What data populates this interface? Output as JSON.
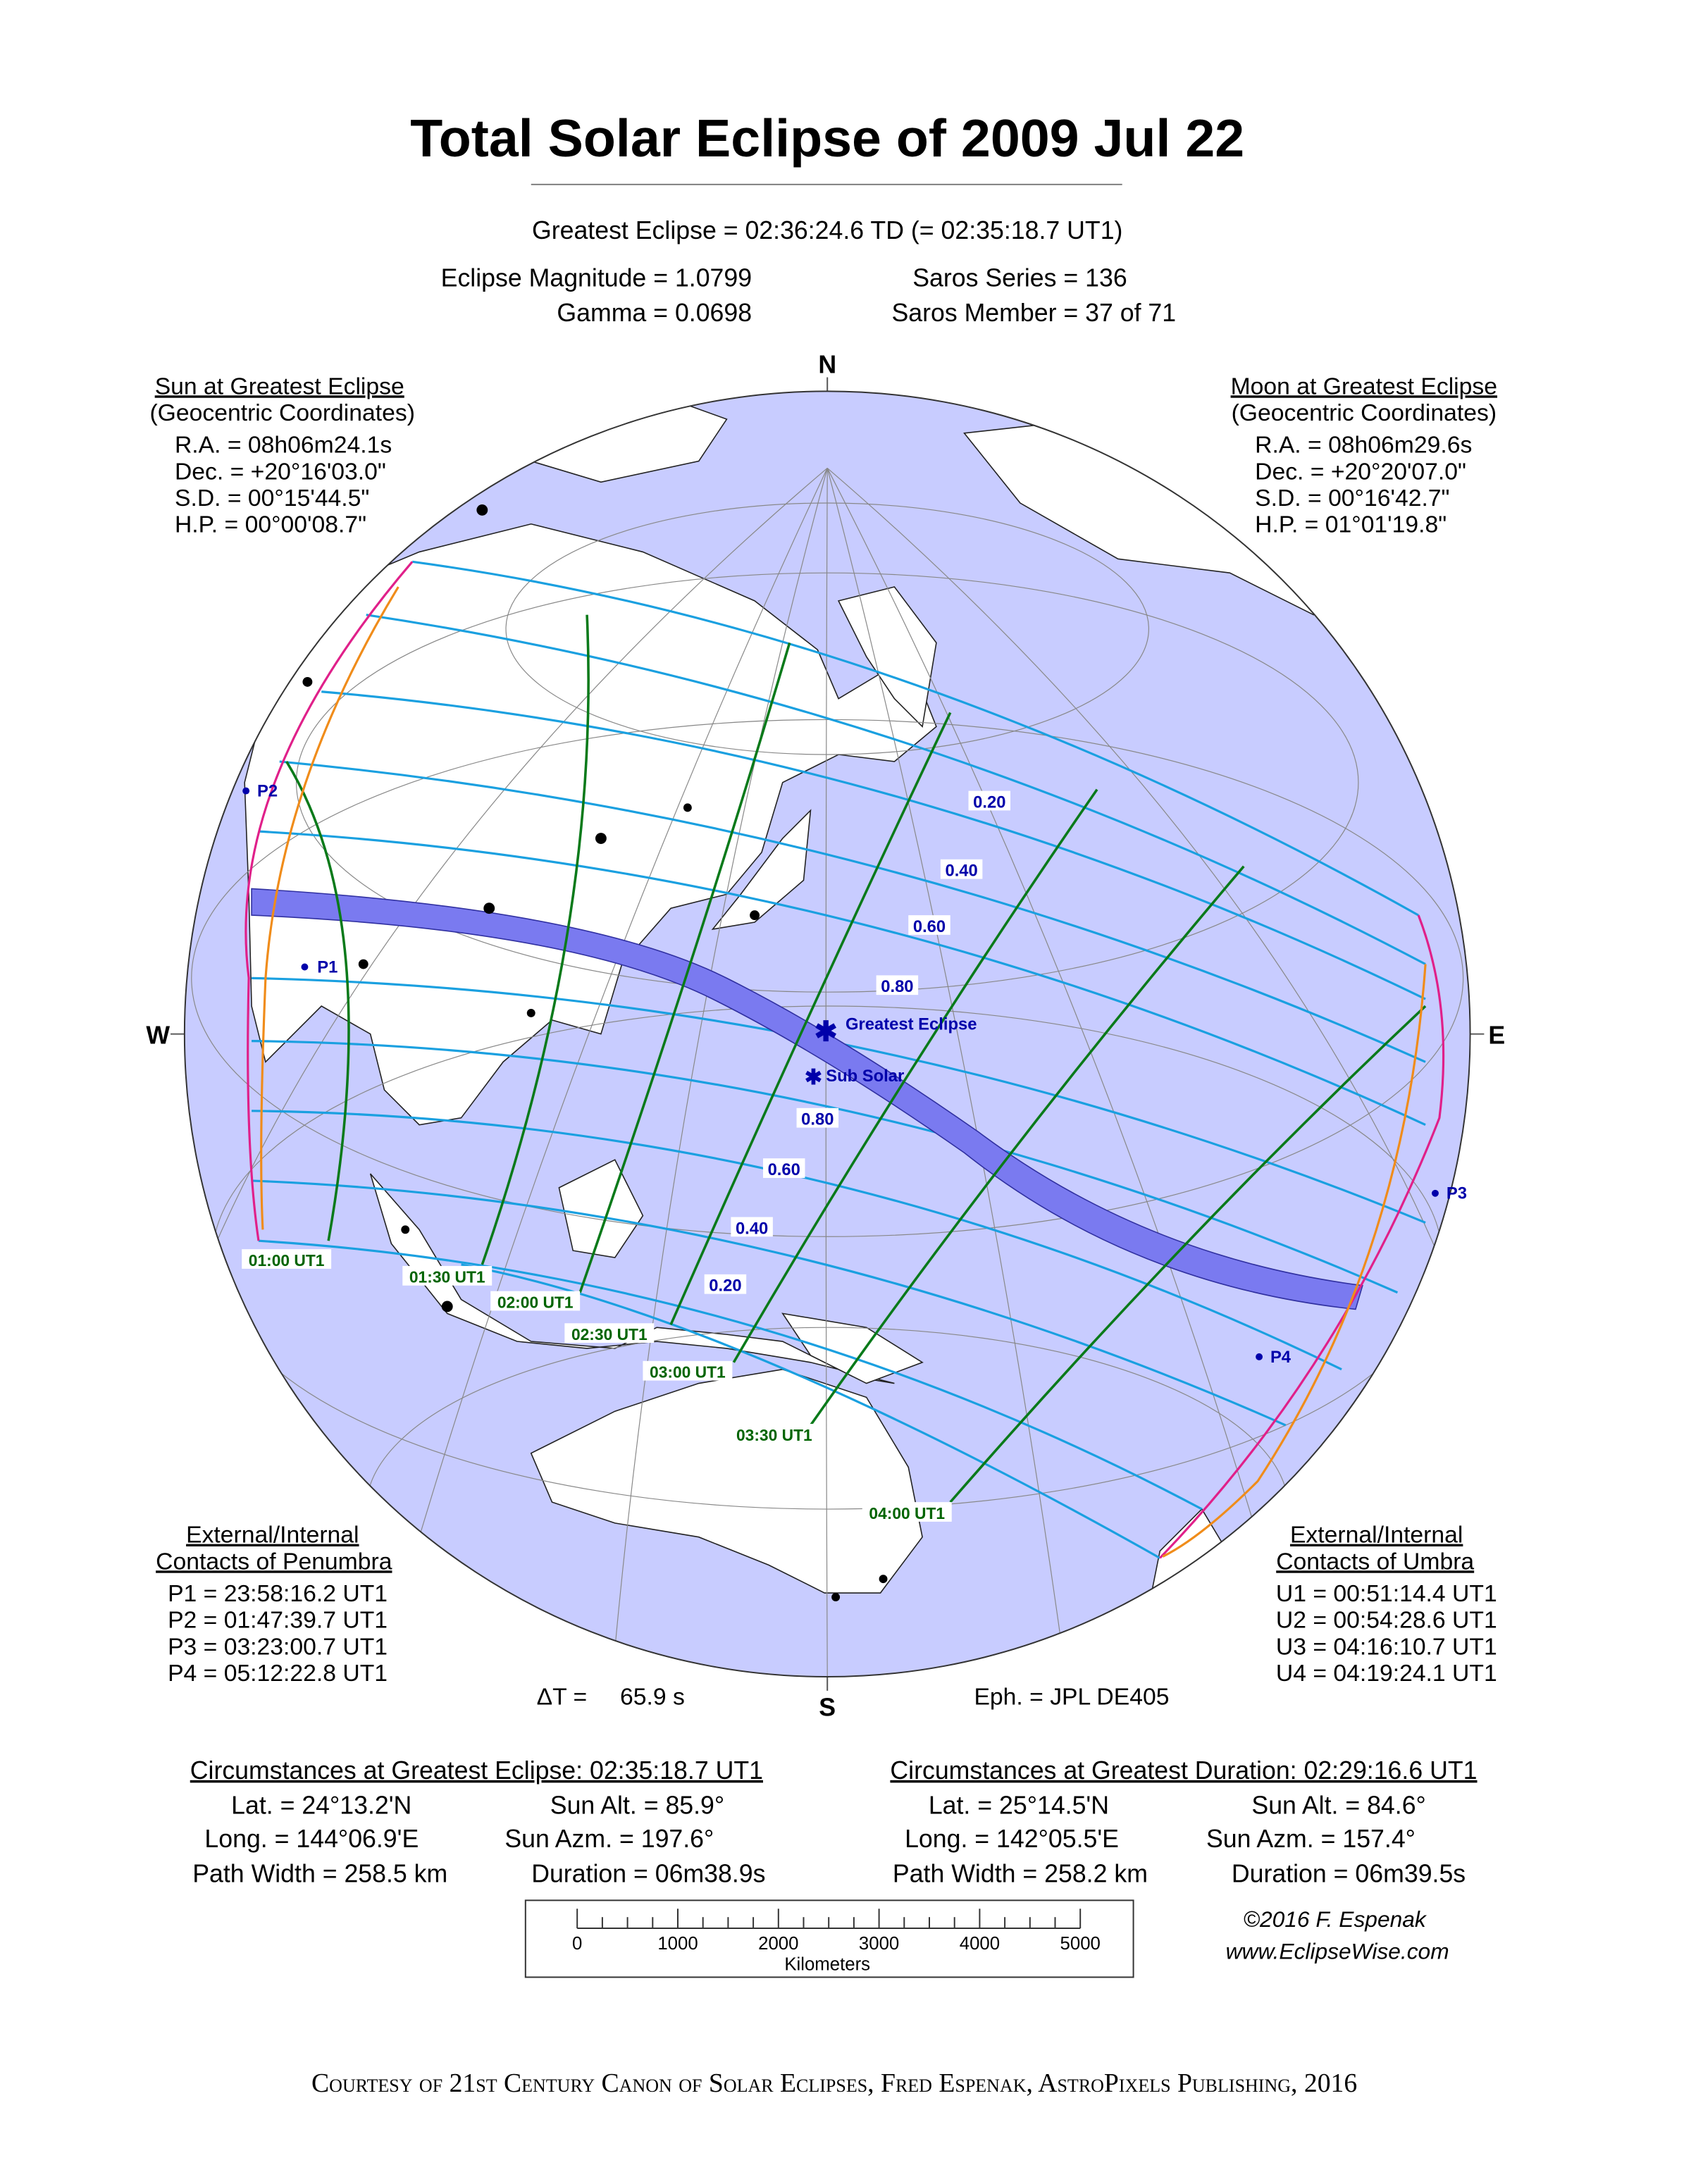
{
  "title": "Total Solar Eclipse of  2009 Jul 22",
  "greatest_eclipse": "Greatest Eclipse =  02:36:24.6 TD   (= 02:35:18.7 UT1)",
  "eclipse_magnitude": "Eclipse Magnitude =  1.0799",
  "gamma": "Gamma =  0.0698",
  "saros_series": "Saros Series =  136",
  "saros_member": "Saros Member =   37 of 71",
  "sun": {
    "title": "Sun at Greatest Eclipse",
    "subtitle": "(Geocentric Coordinates)",
    "ra": "R.A. = 08h06m24.1s",
    "dec": "Dec. = +20°16'03.0\"",
    "sd": "S.D. =  00°15'44.5\"",
    "hp": "H.P. =  00°00'08.7\""
  },
  "moon": {
    "title": "Moon at Greatest Eclipse",
    "subtitle": "(Geocentric Coordinates)",
    "ra": "R.A. = 08h06m29.6s",
    "dec": "Dec. = +20°20'07.0\"",
    "sd": "S.D. =  00°16'42.7\"",
    "hp": "H.P. =  01°01'19.8\""
  },
  "compass": {
    "n": "N",
    "s": "S",
    "e": "E",
    "w": "W"
  },
  "penumbra": {
    "title1": "External/Internal",
    "title2": "Contacts of Penumbra",
    "p1": "P1 = 23:58:16.2 UT1",
    "p2": "P2 = 01:47:39.7 UT1",
    "p3": "P3 = 03:23:00.7 UT1",
    "p4": "P4 = 05:12:22.8 UT1"
  },
  "umbra": {
    "title1": "External/Internal",
    "title2": "Contacts of Umbra",
    "u1": "U1 = 00:51:14.4 UT1",
    "u2": "U2 = 00:54:28.6 UT1",
    "u3": "U3 = 04:16:10.7 UT1",
    "u4": "U4 = 04:19:24.1 UT1"
  },
  "delta_t": "ΔT =     65.9 s",
  "ephemeris": "Eph. = JPL DE405",
  "map_labels": {
    "greatest_eclipse": "Greatest Eclipse",
    "sub_solar": "Sub Solar",
    "p1": "P1",
    "p2": "P2",
    "p3": "P3",
    "p4": "P4",
    "mag_north": [
      "0.20",
      "0.40",
      "0.60",
      "0.80"
    ],
    "mag_south": [
      "0.80",
      "0.60",
      "0.40",
      "0.20"
    ],
    "times": [
      "01:00 UT1",
      "01:30 UT1",
      "02:00 UT1",
      "02:30 UT1",
      "03:00 UT1",
      "03:30 UT1",
      "04:00 UT1"
    ]
  },
  "circ_greatest_eclipse": {
    "title": "Circumstances at Greatest Eclipse:  02:35:18.7 UT1",
    "lat": "Lat. =  24°13.2'N",
    "long": "Long. = 144°06.9'E",
    "path_width": "Path Width = 258.5 km",
    "sun_alt": "Sun Alt. =  85.9°",
    "sun_azm": "Sun Azm. = 197.6°",
    "duration": "Duration =  06m38.9s"
  },
  "circ_greatest_duration": {
    "title": "Circumstances at Greatest Duration:  02:29:16.6 UT1",
    "lat": "Lat. =  25°14.5'N",
    "long": "Long. = 142°05.5'E",
    "path_width": "Path Width = 258.2 km",
    "sun_alt": "Sun Alt. =  84.6°",
    "sun_azm": "Sun Azm. = 157.4°",
    "duration": "Duration =  06m39.5s"
  },
  "scale": {
    "ticks": [
      "0",
      "1000",
      "2000",
      "3000",
      "4000",
      "5000"
    ],
    "unit": "Kilometers"
  },
  "copyright": "©2016  F. Espenak",
  "website": "www.EclipseWise.com",
  "footer": "Courtesy of 21st Century Canon of Solar Eclipses, Fred Espenak, AstroPixels Publishing, 2016",
  "colors": {
    "ocean": "#c8ccff",
    "path": "#7a7af0",
    "magnitude": "#1aa0e0",
    "time": "#0a7a1a",
    "limit": "#e0208a",
    "limit_inner": "#f08c1a"
  }
}
